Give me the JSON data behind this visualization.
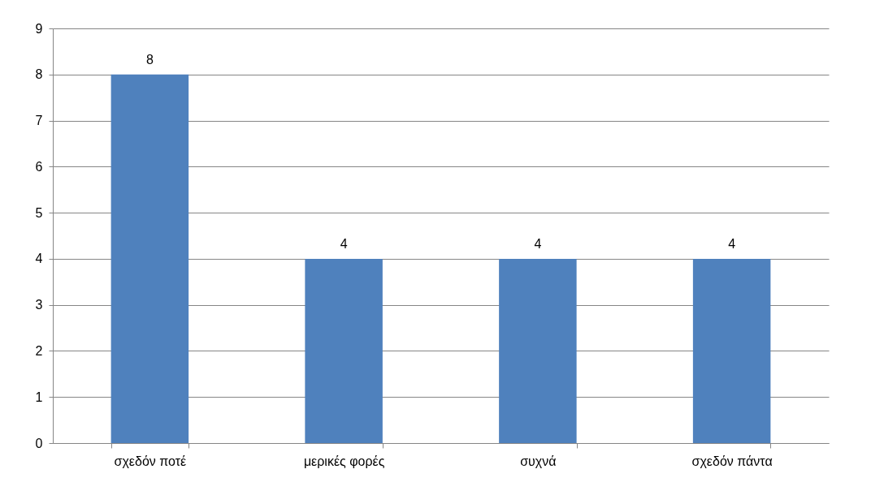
{
  "chart_data": {
    "type": "bar",
    "categories": [
      "σχεδόν ποτέ",
      "μερικές φορές",
      "συχνά",
      "σχεδόν πάντα"
    ],
    "values": [
      8,
      4,
      4,
      4
    ],
    "color": "#4f81bd",
    "ylim": [
      0,
      9
    ],
    "yticks": [
      0,
      1,
      2,
      3,
      4,
      5,
      6,
      7,
      8,
      9
    ],
    "grid": "y",
    "data_labels": true
  }
}
